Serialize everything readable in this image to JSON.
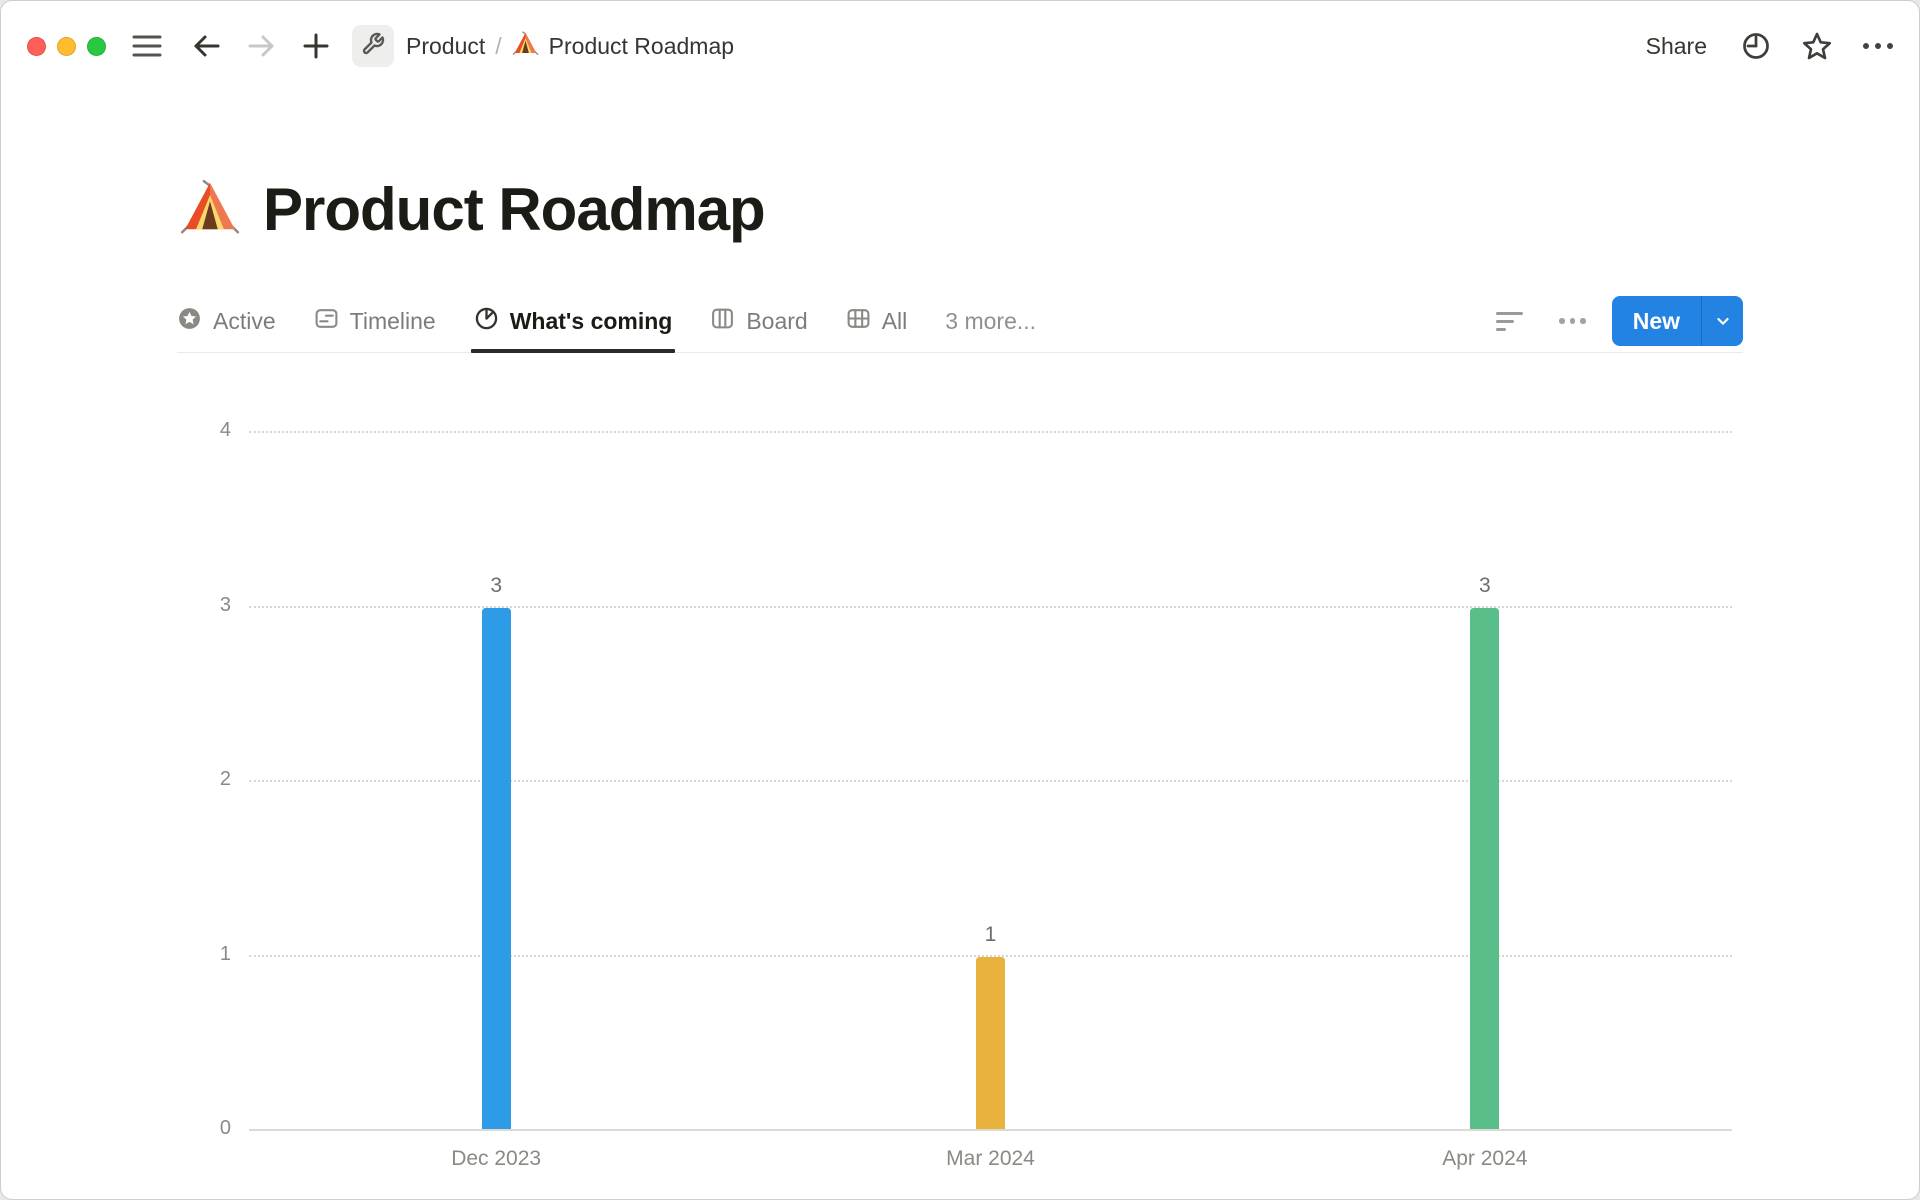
{
  "topbar": {
    "breadcrumb": {
      "parent": "Product",
      "separator": "/",
      "current": "Product Roadmap"
    },
    "share_label": "Share"
  },
  "page": {
    "title": "Product Roadmap",
    "icon": "tent-emoji"
  },
  "view_tabs": {
    "tabs": [
      {
        "label": "Active",
        "icon": "star-badge-icon",
        "selected": false
      },
      {
        "label": "Timeline",
        "icon": "timeline-icon",
        "selected": false
      },
      {
        "label": "What's coming",
        "icon": "pie-chart-icon",
        "selected": true
      },
      {
        "label": "Board",
        "icon": "board-icon",
        "selected": false
      },
      {
        "label": "All",
        "icon": "table-icon",
        "selected": false
      }
    ],
    "more_label": "3 more...",
    "new_button_label": "New"
  },
  "colors": {
    "accent_blue": "#2383e2",
    "bar_blue": "#2e9be6",
    "bar_yellow": "#e8b23c",
    "bar_green": "#5abe8a"
  },
  "chart_data": {
    "type": "bar",
    "title": "",
    "xlabel": "",
    "ylabel": "",
    "categories": [
      "Dec 2023",
      "Mar 2024",
      "Apr 2024"
    ],
    "values": [
      3,
      1,
      3
    ],
    "value_labels": [
      "3",
      "1",
      "3"
    ],
    "bar_colors": [
      "#2e9be6",
      "#e8b23c",
      "#5abe8a"
    ],
    "yticks": [
      0,
      1,
      2,
      3,
      4
    ],
    "ylim": [
      0,
      4
    ],
    "grid": "horizontal-dotted",
    "legend": "none"
  }
}
